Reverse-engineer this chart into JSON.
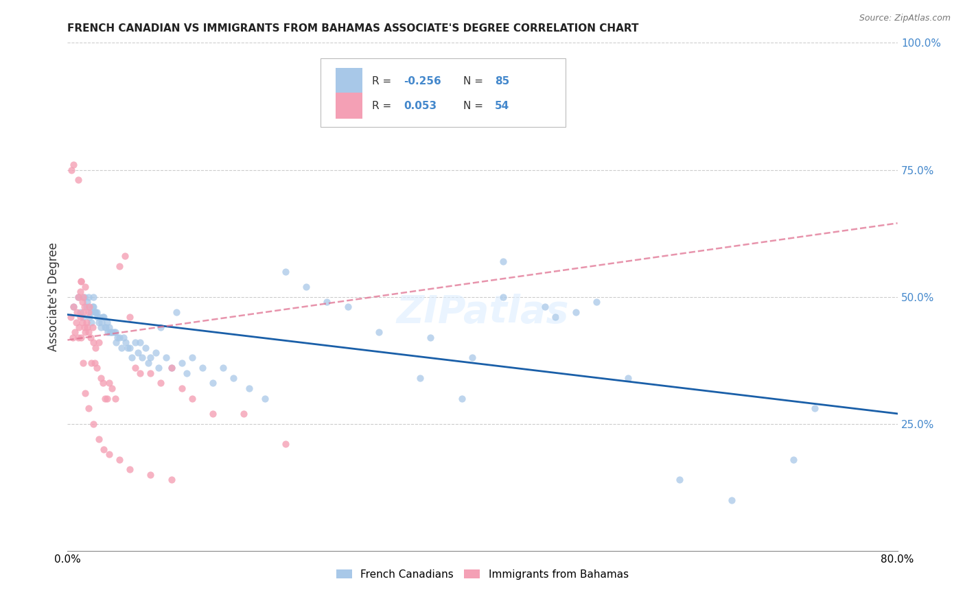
{
  "title": "FRENCH CANADIAN VS IMMIGRANTS FROM BAHAMAS ASSOCIATE'S DEGREE CORRELATION CHART",
  "source": "Source: ZipAtlas.com",
  "ylabel": "Associate's Degree",
  "right_yticks": [
    "100.0%",
    "75.0%",
    "50.0%",
    "25.0%"
  ],
  "right_ytick_vals": [
    1.0,
    0.75,
    0.5,
    0.25
  ],
  "R_blue": -0.256,
  "N_blue": 85,
  "R_pink": 0.053,
  "N_pink": 54,
  "blue_color": "#a8c8e8",
  "pink_color": "#f4a0b5",
  "blue_line_color": "#1a5fa8",
  "pink_line_color": "#e07090",
  "label_color": "#4488cc",
  "watermark": "ZIPatlas",
  "xmin": 0.0,
  "xmax": 0.8,
  "ymin": 0.0,
  "ymax": 1.0,
  "blue_line_x0": 0.0,
  "blue_line_y0": 0.465,
  "blue_line_x1": 0.8,
  "blue_line_y1": 0.27,
  "pink_line_x0": 0.0,
  "pink_line_y0": 0.415,
  "pink_line_x1": 0.8,
  "pink_line_y1": 0.645,
  "blue_scatter_x": [
    0.006,
    0.01,
    0.012,
    0.015,
    0.016,
    0.018,
    0.019,
    0.02,
    0.021,
    0.022,
    0.023,
    0.024,
    0.025,
    0.025,
    0.026,
    0.027,
    0.028,
    0.029,
    0.03,
    0.031,
    0.032,
    0.033,
    0.034,
    0.035,
    0.036,
    0.037,
    0.038,
    0.039,
    0.04,
    0.041,
    0.042,
    0.043,
    0.045,
    0.046,
    0.047,
    0.048,
    0.05,
    0.052,
    0.054,
    0.056,
    0.058,
    0.06,
    0.062,
    0.065,
    0.068,
    0.07,
    0.072,
    0.075,
    0.078,
    0.08,
    0.085,
    0.088,
    0.09,
    0.095,
    0.1,
    0.105,
    0.11,
    0.115,
    0.12,
    0.13,
    0.14,
    0.15,
    0.16,
    0.175,
    0.19,
    0.21,
    0.23,
    0.25,
    0.27,
    0.3,
    0.34,
    0.38,
    0.42,
    0.46,
    0.35,
    0.39,
    0.42,
    0.47,
    0.49,
    0.51,
    0.54,
    0.59,
    0.64,
    0.7,
    0.72
  ],
  "blue_scatter_y": [
    0.48,
    0.5,
    0.47,
    0.46,
    0.5,
    0.48,
    0.49,
    0.5,
    0.46,
    0.47,
    0.45,
    0.48,
    0.48,
    0.5,
    0.47,
    0.47,
    0.47,
    0.46,
    0.45,
    0.46,
    0.44,
    0.45,
    0.46,
    0.46,
    0.44,
    0.44,
    0.45,
    0.43,
    0.44,
    0.43,
    0.43,
    0.43,
    0.43,
    0.43,
    0.41,
    0.42,
    0.42,
    0.4,
    0.42,
    0.41,
    0.4,
    0.4,
    0.38,
    0.41,
    0.39,
    0.41,
    0.38,
    0.4,
    0.37,
    0.38,
    0.39,
    0.36,
    0.44,
    0.38,
    0.36,
    0.47,
    0.37,
    0.35,
    0.38,
    0.36,
    0.33,
    0.36,
    0.34,
    0.32,
    0.3,
    0.55,
    0.52,
    0.49,
    0.48,
    0.43,
    0.34,
    0.3,
    0.57,
    0.48,
    0.42,
    0.38,
    0.5,
    0.46,
    0.47,
    0.49,
    0.34,
    0.14,
    0.1,
    0.18,
    0.28
  ],
  "pink_scatter_x": [
    0.003,
    0.005,
    0.006,
    0.007,
    0.008,
    0.009,
    0.01,
    0.01,
    0.011,
    0.012,
    0.012,
    0.013,
    0.013,
    0.014,
    0.014,
    0.015,
    0.015,
    0.016,
    0.016,
    0.017,
    0.017,
    0.018,
    0.019,
    0.02,
    0.02,
    0.021,
    0.022,
    0.023,
    0.024,
    0.025,
    0.026,
    0.027,
    0.028,
    0.03,
    0.032,
    0.034,
    0.036,
    0.038,
    0.04,
    0.043,
    0.046,
    0.05,
    0.055,
    0.06,
    0.065,
    0.07,
    0.08,
    0.09,
    0.1,
    0.11,
    0.12,
    0.14,
    0.17,
    0.21
  ],
  "pink_scatter_y": [
    0.46,
    0.42,
    0.48,
    0.43,
    0.45,
    0.47,
    0.42,
    0.5,
    0.44,
    0.46,
    0.51,
    0.53,
    0.42,
    0.45,
    0.49,
    0.47,
    0.5,
    0.44,
    0.48,
    0.52,
    0.43,
    0.45,
    0.44,
    0.47,
    0.43,
    0.48,
    0.42,
    0.37,
    0.44,
    0.41,
    0.37,
    0.4,
    0.36,
    0.41,
    0.34,
    0.33,
    0.3,
    0.3,
    0.33,
    0.32,
    0.3,
    0.56,
    0.58,
    0.46,
    0.36,
    0.35,
    0.35,
    0.33,
    0.36,
    0.32,
    0.3,
    0.27,
    0.27,
    0.21
  ],
  "pink_extra_x": [
    0.004,
    0.006,
    0.01,
    0.013,
    0.015,
    0.017,
    0.02,
    0.025,
    0.03,
    0.035,
    0.04,
    0.05,
    0.06,
    0.08,
    0.1
  ],
  "pink_extra_y": [
    0.75,
    0.76,
    0.73,
    0.53,
    0.37,
    0.31,
    0.28,
    0.25,
    0.22,
    0.2,
    0.19,
    0.18,
    0.16,
    0.15,
    0.14
  ]
}
